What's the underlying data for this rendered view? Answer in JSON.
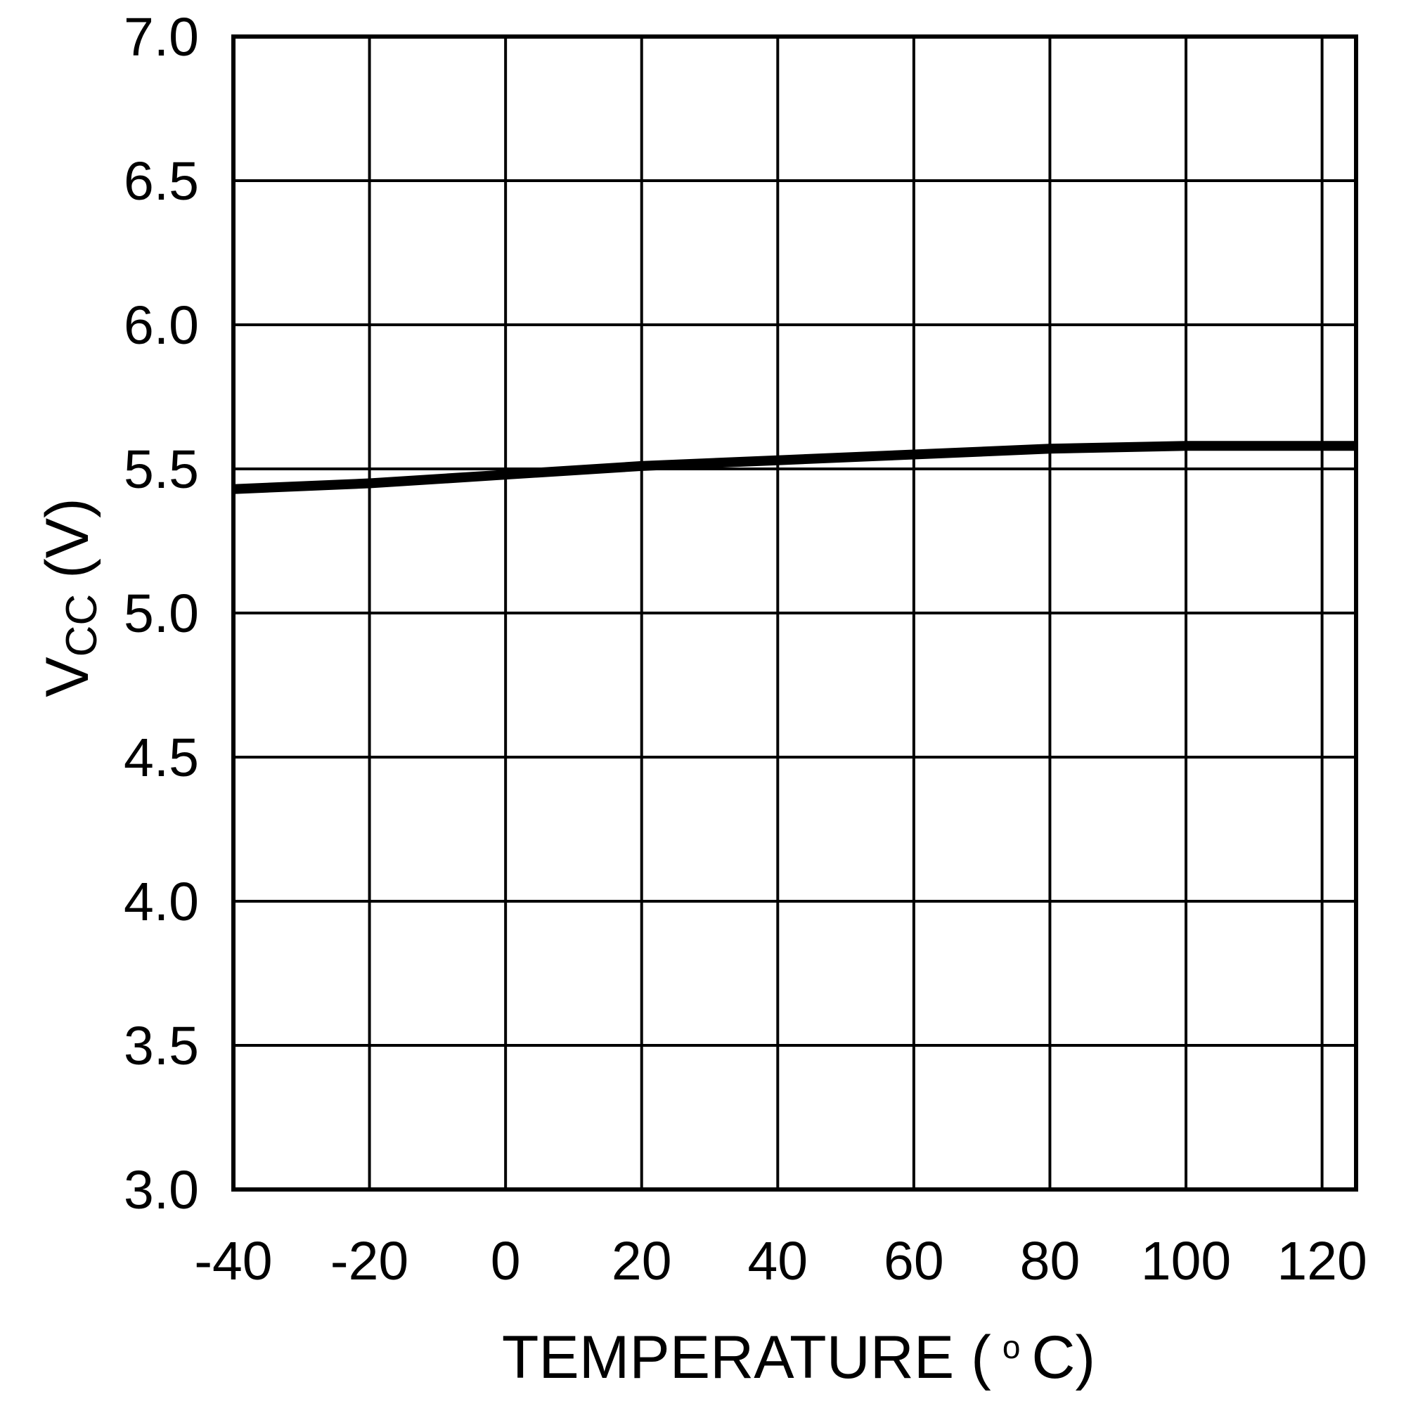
{
  "chart_data": {
    "type": "line",
    "title": "",
    "xlabel": {
      "text": "TEMPERATURE (",
      "degree": "o",
      "unit": "C)"
    },
    "ylabel": {
      "main": "V",
      "subscript": "CC",
      "unit": "(V)"
    },
    "xlim": [
      -40,
      125
    ],
    "ylim": [
      3.0,
      7.0
    ],
    "grid": true,
    "x_ticks": [
      -40,
      -20,
      0,
      20,
      40,
      60,
      80,
      100,
      120
    ],
    "x_tick_labels": [
      "-40",
      "-20",
      "0",
      "20",
      "40",
      "60",
      "80",
      "100",
      "120"
    ],
    "y_ticks": [
      3.0,
      3.5,
      4.0,
      4.5,
      5.0,
      5.5,
      6.0,
      6.5,
      7.0
    ],
    "y_tick_labels": [
      "3.0",
      "3.5",
      "4.0",
      "4.5",
      "5.0",
      "5.5",
      "6.0",
      "6.5",
      "7.0"
    ],
    "series": [
      {
        "x": [
          -40,
          -20,
          0,
          20,
          40,
          60,
          80,
          100,
          120,
          125
        ],
        "y": [
          5.43,
          5.45,
          5.48,
          5.51,
          5.53,
          5.55,
          5.57,
          5.58,
          5.58,
          5.58
        ],
        "color": "#000000"
      }
    ]
  }
}
